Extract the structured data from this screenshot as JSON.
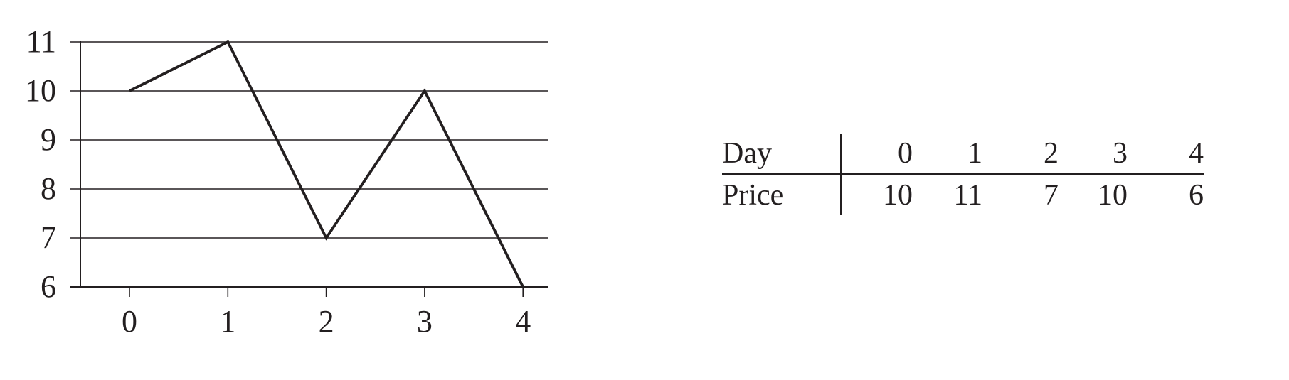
{
  "chart_data": {
    "type": "line",
    "x": [
      0,
      1,
      2,
      3,
      4
    ],
    "y": [
      10,
      11,
      7,
      10,
      6
    ],
    "xticks": [
      "0",
      "1",
      "2",
      "3",
      "4"
    ],
    "yticks": [
      "6",
      "7",
      "8",
      "9",
      "10",
      "11"
    ],
    "xlim": [
      -0.5,
      4.25
    ],
    "ylim": [
      6,
      11
    ],
    "grid": "horizontal",
    "title": "",
    "xlabel": "",
    "ylabel": "",
    "line_color": "#231f20"
  },
  "table": {
    "row1_label": "Day",
    "row2_label": "Price",
    "days": [
      "0",
      "1",
      "2",
      "3",
      "4"
    ],
    "prices": [
      "10",
      "11",
      "7",
      "10",
      "6"
    ]
  }
}
